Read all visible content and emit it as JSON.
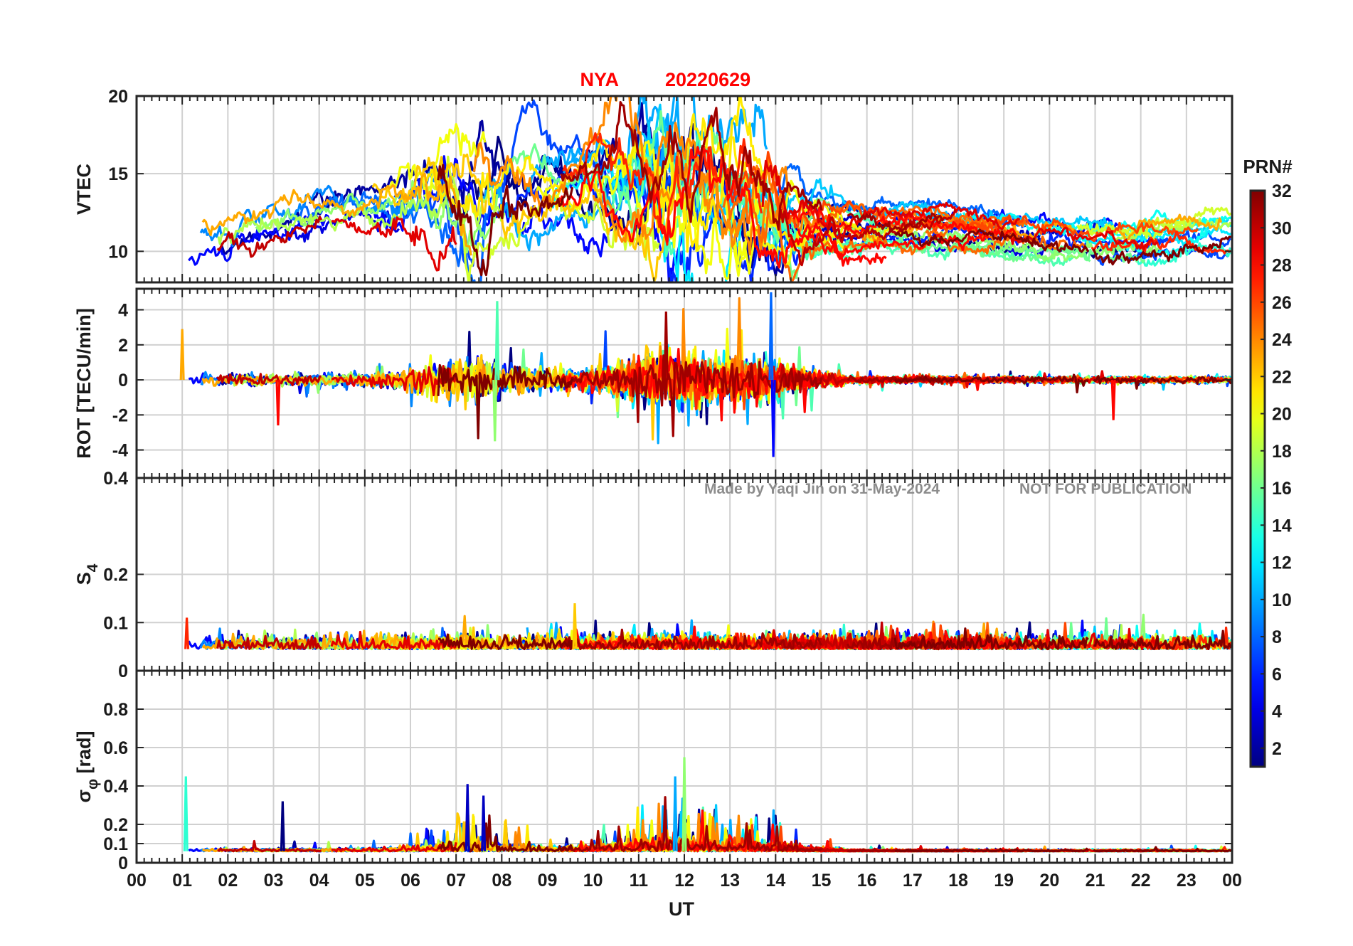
{
  "figure": {
    "title_station": "NYA",
    "title_date": "20220629",
    "title_color": "#ff0000",
    "watermark_author": "Made by Yaqi Jin on 31-May-2024",
    "watermark_notice": "NOT FOR PUBLICATION",
    "xlabel": "UT",
    "colormap": "jet"
  },
  "colorbar": {
    "title": "PRN#",
    "range": [
      1,
      32
    ],
    "ticks": [
      "2",
      "4",
      "6",
      "8",
      "10",
      "12",
      "14",
      "16",
      "18",
      "20",
      "22",
      "24",
      "26",
      "28",
      "30",
      "32"
    ]
  },
  "chart_data": [
    {
      "type": "line",
      "panel": "vtec",
      "ylabel": "VTEC",
      "xlim": [
        0,
        24
      ],
      "ylim": [
        8,
        20
      ],
      "yticks": [
        "10",
        "15",
        "20"
      ],
      "xticks": [
        "00",
        "01",
        "02",
        "03",
        "04",
        "05",
        "06",
        "07",
        "08",
        "09",
        "10",
        "11",
        "12",
        "13",
        "14",
        "15",
        "16",
        "17",
        "18",
        "19",
        "20",
        "21",
        "22",
        "23",
        "00"
      ],
      "x_unit": "UT hours",
      "grid": true,
      "baseline": [
        [
          0,
          10
        ],
        [
          2,
          11.3
        ],
        [
          4,
          12.8
        ],
        [
          6,
          13.2
        ],
        [
          8,
          14.0
        ],
        [
          10,
          14.3
        ],
        [
          11.5,
          13.8
        ],
        [
          13,
          13.0
        ],
        [
          14,
          11.6
        ],
        [
          16,
          11.3
        ],
        [
          18,
          11.3
        ],
        [
          20,
          10.8
        ],
        [
          22,
          10.6
        ],
        [
          24,
          11.2
        ]
      ],
      "series_generator": "per-PRN arcs colored by PRN number, values around baseline"
    },
    {
      "type": "line",
      "panel": "rot",
      "ylabel": "ROT [TECU/min]",
      "xlim": [
        0,
        24
      ],
      "ylim": [
        -5.6,
        5.2
      ],
      "yticks": [
        "-4",
        "-2",
        "0",
        "2",
        "4"
      ],
      "grid": true,
      "peaks": [
        {
          "x": 7.9,
          "y": 4.5
        },
        {
          "x": 7.85,
          "y": -3.5
        },
        {
          "x": 13.9,
          "y": 5.0
        },
        {
          "x": 13.95,
          "y": -4.4
        },
        {
          "x": 11.6,
          "y": 3.9
        },
        {
          "x": 3.1,
          "y": -2.6
        },
        {
          "x": 21.4,
          "y": -2.3
        },
        {
          "x": 1.0,
          "y": 2.9
        }
      ]
    },
    {
      "type": "line",
      "panel": "s4",
      "ylabel": "S",
      "ylabel_subscript": "4",
      "xlim": [
        0,
        24
      ],
      "ylim": [
        0,
        0.4
      ],
      "yticks": [
        "0",
        "0.1",
        "0.2",
        "0.4"
      ],
      "grid": true,
      "typical_level": 0.045,
      "peaks": [
        {
          "x": 9.6,
          "y": 0.14
        },
        {
          "x": 1.1,
          "y": 0.11
        }
      ]
    },
    {
      "type": "line",
      "panel": "sigma_phi",
      "ylabel": "σ",
      "ylabel_subscript": "φ",
      "ylabel_unit": "[rad]",
      "xlim": [
        0,
        24
      ],
      "ylim": [
        0,
        1.0
      ],
      "yticks": [
        "0",
        "0.1",
        "0.2",
        "0.4",
        "0.6",
        "0.8"
      ],
      "grid": true,
      "typical_level": 0.06,
      "peaks": [
        {
          "x": 1.08,
          "y": 0.45
        },
        {
          "x": 3.2,
          "y": 0.32
        },
        {
          "x": 7.25,
          "y": 0.41
        },
        {
          "x": 12.0,
          "y": 0.55
        },
        {
          "x": 11.8,
          "y": 0.45
        },
        {
          "x": 7.6,
          "y": 0.35
        }
      ]
    }
  ]
}
